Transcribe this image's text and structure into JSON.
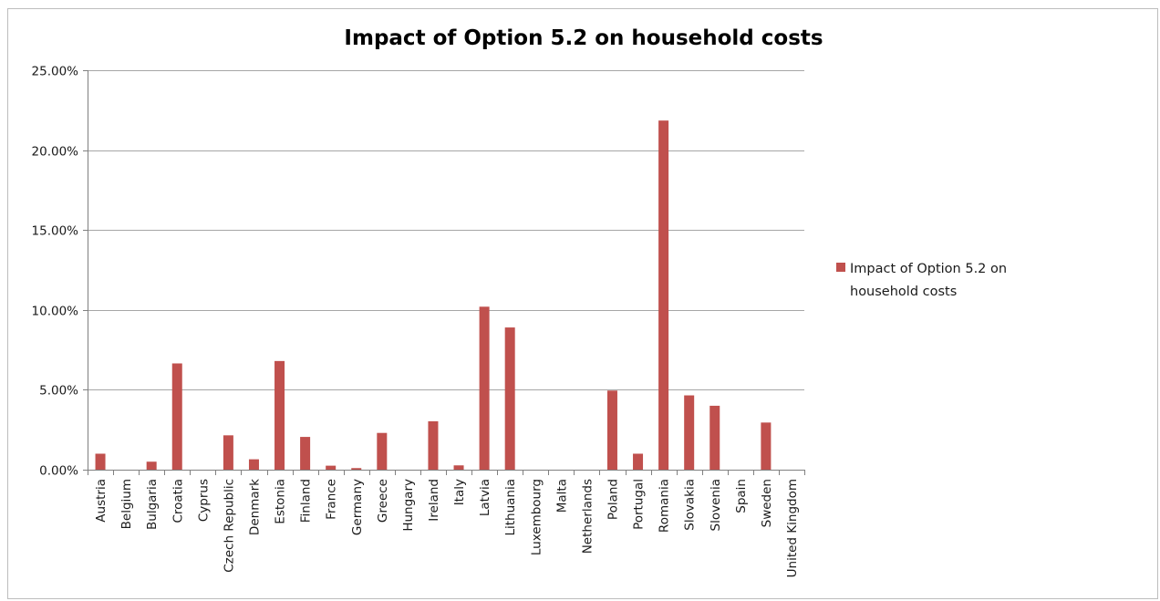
{
  "chart_data": {
    "type": "bar",
    "title": "Impact of Option 5.2 on household costs",
    "xlabel": "",
    "ylabel": "",
    "ylim": [
      0,
      0.25
    ],
    "yticks": [
      0,
      0.05,
      0.1,
      0.15,
      0.2,
      0.25
    ],
    "ytick_labels": [
      "0.00%",
      "5.00%",
      "10.00%",
      "15.00%",
      "20.00%",
      "25.00%"
    ],
    "grid": true,
    "legend": {
      "placement": "right",
      "lines": [
        "Impact of Option 5.2 on",
        "household costs"
      ]
    },
    "categories": [
      "Austria",
      "Belgium",
      "Bulgaria",
      "Croatia",
      "Cyprus",
      "Czech Republic",
      "Denmark",
      "Estonia",
      "Finland",
      "France",
      "Germany",
      "Greece",
      "Hungary",
      "Ireland",
      "Italy",
      "Latvia",
      "Lithuania",
      "Luxembourg",
      "Malta",
      "Netherlands",
      "Poland",
      "Portugal",
      "Romania",
      "Slovakia",
      "Slovenia",
      "Spain",
      "Sweden",
      "United Kingdom"
    ],
    "series": [
      {
        "name": "Impact of Option 5.2 on household costs",
        "color": "#c0504d",
        "values": [
          0.01,
          0.0,
          0.005,
          0.0665,
          0.0,
          0.0215,
          0.0065,
          0.068,
          0.0205,
          0.0025,
          0.001,
          0.023,
          0.0,
          0.0303,
          0.0027,
          0.102,
          0.089,
          0.0,
          0.0,
          0.0,
          0.0495,
          0.01,
          0.2185,
          0.0465,
          0.04,
          0.0,
          0.0295,
          0.0
        ]
      }
    ]
  }
}
